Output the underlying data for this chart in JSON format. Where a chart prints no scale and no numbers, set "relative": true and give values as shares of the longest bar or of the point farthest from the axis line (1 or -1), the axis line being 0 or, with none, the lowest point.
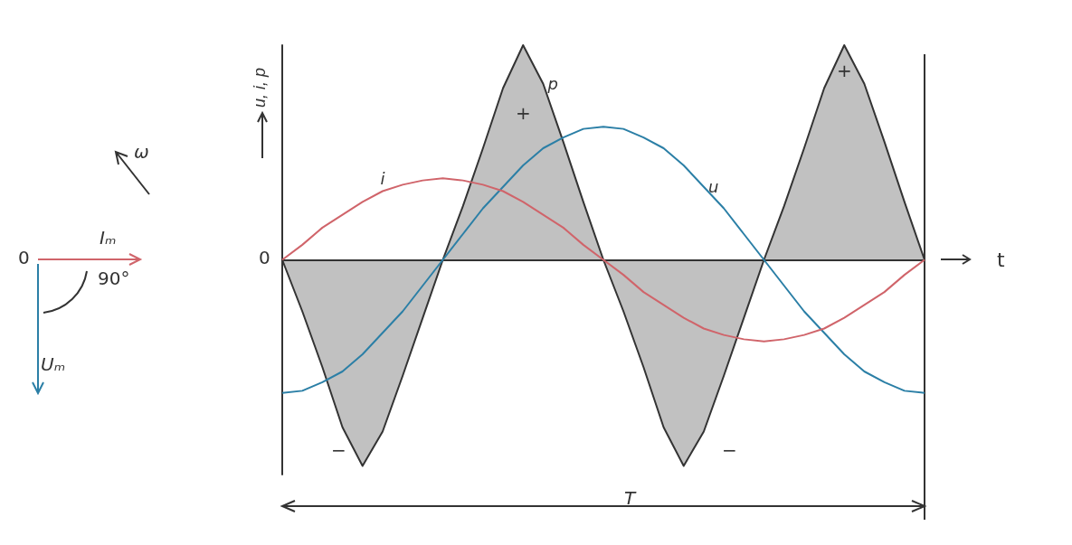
{
  "chart_data": {
    "type": "line",
    "relative": true,
    "xlabel": "t",
    "ylabel": "u, i, p",
    "legend": false,
    "grid": false,
    "categories": [
      null,
      null,
      null,
      null,
      null,
      null,
      null,
      null,
      null,
      null,
      null,
      null,
      null,
      null,
      null,
      null,
      null,
      null,
      null,
      null,
      null,
      null,
      null,
      null,
      null,
      null,
      null,
      null,
      null,
      null,
      null,
      null,
      null
    ],
    "series": [
      {
        "name": "p",
        "type": "area",
        "color": "#333333",
        "values": [
          0,
          -0.24,
          -0.5,
          -0.78,
          -0.96,
          -0.8,
          -0.54,
          -0.27,
          0,
          0.25,
          0.52,
          0.8,
          1,
          0.82,
          0.55,
          0.27,
          0,
          -0.24,
          -0.5,
          -0.78,
          -0.96,
          -0.8,
          -0.54,
          -0.27,
          0,
          0.25,
          0.52,
          0.8,
          1,
          0.82,
          0.55,
          0.27,
          0
        ]
      },
      {
        "name": "u",
        "color": "#2b7fa6",
        "values": [
          -0.62,
          -0.61,
          -0.57,
          -0.52,
          -0.44,
          -0.34,
          -0.24,
          -0.12,
          0,
          0.12,
          0.24,
          0.34,
          0.44,
          0.52,
          0.57,
          0.61,
          0.62,
          0.61,
          0.57,
          0.52,
          0.44,
          0.34,
          0.24,
          0.12,
          0,
          -0.12,
          -0.24,
          -0.34,
          -0.44,
          -0.52,
          -0.57,
          -0.61,
          -0.62
        ]
      },
      {
        "name": "i",
        "color": "#d0646a",
        "values": [
          0,
          0.07,
          0.15,
          0.21,
          0.27,
          0.32,
          0.35,
          0.37,
          0.38,
          0.37,
          0.35,
          0.32,
          0.27,
          0.21,
          0.15,
          0.07,
          0,
          -0.07,
          -0.15,
          -0.21,
          -0.27,
          -0.32,
          -0.35,
          -0.37,
          -0.38,
          -0.37,
          -0.35,
          -0.32,
          -0.27,
          -0.21,
          -0.15,
          -0.07,
          0
        ]
      }
    ],
    "annotations": [
      "0",
      "T",
      "+",
      "+",
      "−",
      "−",
      "0",
      "Iₘ",
      "90°",
      "Uₘ",
      "ω"
    ]
  }
}
